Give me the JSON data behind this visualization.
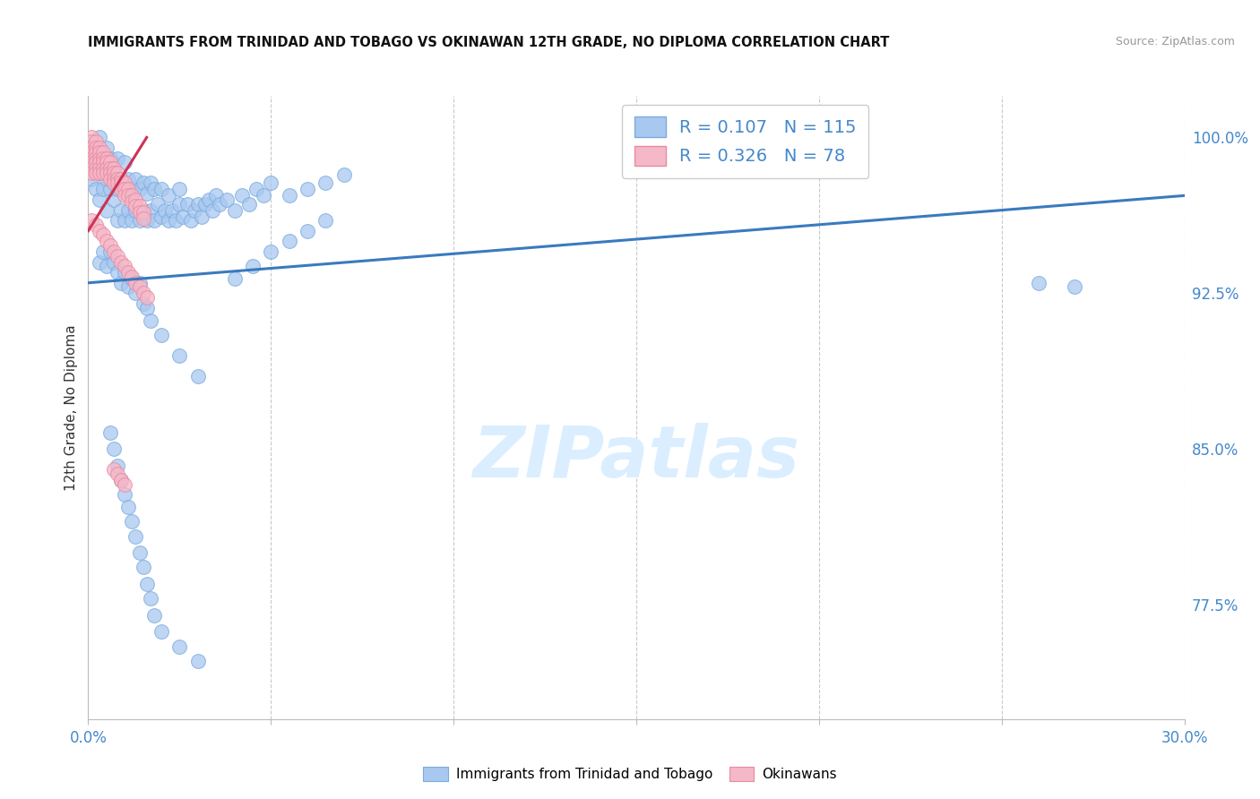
{
  "title": "IMMIGRANTS FROM TRINIDAD AND TOBAGO VS OKINAWAN 12TH GRADE, NO DIPLOMA CORRELATION CHART",
  "source": "Source: ZipAtlas.com",
  "ylabel_label": "12th Grade, No Diploma",
  "ytick_labels": [
    "100.0%",
    "92.5%",
    "85.0%",
    "77.5%"
  ],
  "ytick_values": [
    1.0,
    0.925,
    0.85,
    0.775
  ],
  "xlim": [
    0.0,
    0.3
  ],
  "ylim": [
    0.72,
    1.02
  ],
  "legend_blue_label": "Immigrants from Trinidad and Tobago",
  "legend_pink_label": "Okinawans",
  "R_blue": 0.107,
  "N_blue": 115,
  "R_pink": 0.326,
  "N_pink": 78,
  "blue_color": "#a8c8f0",
  "blue_edge_color": "#7aabde",
  "pink_color": "#f5b8c8",
  "pink_edge_color": "#e88aa0",
  "trend_blue_color": "#3a7abf",
  "trend_pink_color": "#cc3355",
  "watermark": "ZIPatlas",
  "watermark_color": "#daeeff",
  "blue_scatter_x": [
    0.001,
    0.001,
    0.002,
    0.002,
    0.003,
    0.003,
    0.003,
    0.004,
    0.004,
    0.005,
    0.005,
    0.005,
    0.006,
    0.006,
    0.007,
    0.007,
    0.008,
    0.008,
    0.008,
    0.009,
    0.009,
    0.01,
    0.01,
    0.01,
    0.011,
    0.011,
    0.012,
    0.012,
    0.013,
    0.013,
    0.014,
    0.014,
    0.015,
    0.015,
    0.016,
    0.016,
    0.017,
    0.017,
    0.018,
    0.018,
    0.019,
    0.02,
    0.02,
    0.021,
    0.022,
    0.022,
    0.023,
    0.024,
    0.025,
    0.025,
    0.026,
    0.027,
    0.028,
    0.029,
    0.03,
    0.031,
    0.032,
    0.033,
    0.034,
    0.035,
    0.036,
    0.038,
    0.04,
    0.042,
    0.044,
    0.046,
    0.048,
    0.05,
    0.055,
    0.06,
    0.065,
    0.07,
    0.04,
    0.045,
    0.05,
    0.055,
    0.06,
    0.065,
    0.003,
    0.004,
    0.005,
    0.006,
    0.007,
    0.008,
    0.009,
    0.01,
    0.011,
    0.012,
    0.013,
    0.014,
    0.015,
    0.016,
    0.017,
    0.02,
    0.025,
    0.03,
    0.006,
    0.007,
    0.008,
    0.009,
    0.01,
    0.011,
    0.012,
    0.013,
    0.014,
    0.015,
    0.016,
    0.017,
    0.018,
    0.02,
    0.025,
    0.03,
    0.26,
    0.27
  ],
  "blue_scatter_y": [
    0.98,
    0.995,
    0.975,
    0.99,
    0.97,
    0.985,
    1.0,
    0.975,
    0.99,
    0.98,
    0.995,
    0.965,
    0.975,
    0.99,
    0.97,
    0.985,
    0.96,
    0.975,
    0.99,
    0.965,
    0.98,
    0.96,
    0.975,
    0.988,
    0.965,
    0.98,
    0.96,
    0.975,
    0.965,
    0.98,
    0.96,
    0.975,
    0.965,
    0.978,
    0.96,
    0.973,
    0.965,
    0.978,
    0.96,
    0.975,
    0.968,
    0.962,
    0.975,
    0.965,
    0.96,
    0.972,
    0.965,
    0.96,
    0.968,
    0.975,
    0.962,
    0.968,
    0.96,
    0.965,
    0.968,
    0.962,
    0.968,
    0.97,
    0.965,
    0.972,
    0.968,
    0.97,
    0.965,
    0.972,
    0.968,
    0.975,
    0.972,
    0.978,
    0.972,
    0.975,
    0.978,
    0.982,
    0.932,
    0.938,
    0.945,
    0.95,
    0.955,
    0.96,
    0.94,
    0.945,
    0.938,
    0.945,
    0.94,
    0.935,
    0.93,
    0.935,
    0.928,
    0.932,
    0.925,
    0.93,
    0.92,
    0.918,
    0.912,
    0.905,
    0.895,
    0.885,
    0.858,
    0.85,
    0.842,
    0.835,
    0.828,
    0.822,
    0.815,
    0.808,
    0.8,
    0.793,
    0.785,
    0.778,
    0.77,
    0.762,
    0.755,
    0.748,
    0.93,
    0.928
  ],
  "pink_scatter_x": [
    0.001,
    0.001,
    0.001,
    0.001,
    0.001,
    0.001,
    0.001,
    0.001,
    0.002,
    0.002,
    0.002,
    0.002,
    0.002,
    0.002,
    0.002,
    0.003,
    0.003,
    0.003,
    0.003,
    0.003,
    0.003,
    0.004,
    0.004,
    0.004,
    0.004,
    0.004,
    0.005,
    0.005,
    0.005,
    0.005,
    0.006,
    0.006,
    0.006,
    0.006,
    0.007,
    0.007,
    0.007,
    0.007,
    0.008,
    0.008,
    0.008,
    0.009,
    0.009,
    0.009,
    0.01,
    0.01,
    0.01,
    0.011,
    0.011,
    0.012,
    0.012,
    0.013,
    0.013,
    0.014,
    0.014,
    0.015,
    0.015,
    0.001,
    0.002,
    0.003,
    0.004,
    0.005,
    0.006,
    0.007,
    0.008,
    0.009,
    0.01,
    0.011,
    0.012,
    0.013,
    0.014,
    0.015,
    0.016,
    0.007,
    0.008,
    0.009,
    0.01
  ],
  "pink_scatter_y": [
    1.0,
    0.998,
    0.995,
    0.993,
    0.99,
    0.988,
    0.985,
    0.983,
    0.998,
    0.995,
    0.993,
    0.99,
    0.988,
    0.985,
    0.983,
    0.995,
    0.993,
    0.99,
    0.988,
    0.985,
    0.983,
    0.993,
    0.99,
    0.988,
    0.985,
    0.983,
    0.99,
    0.988,
    0.985,
    0.983,
    0.988,
    0.985,
    0.983,
    0.98,
    0.985,
    0.983,
    0.98,
    0.978,
    0.983,
    0.98,
    0.978,
    0.98,
    0.978,
    0.975,
    0.978,
    0.975,
    0.972,
    0.975,
    0.972,
    0.972,
    0.969,
    0.97,
    0.967,
    0.967,
    0.964,
    0.964,
    0.961,
    0.96,
    0.958,
    0.955,
    0.953,
    0.95,
    0.948,
    0.945,
    0.943,
    0.94,
    0.938,
    0.935,
    0.933,
    0.93,
    0.928,
    0.925,
    0.923,
    0.84,
    0.838,
    0.835,
    0.833
  ],
  "blue_trendline_x": [
    0.0,
    0.3
  ],
  "blue_trendline_y": [
    0.93,
    0.972
  ],
  "pink_trendline_x": [
    0.0,
    0.016
  ],
  "pink_trendline_y": [
    0.955,
    1.0
  ]
}
